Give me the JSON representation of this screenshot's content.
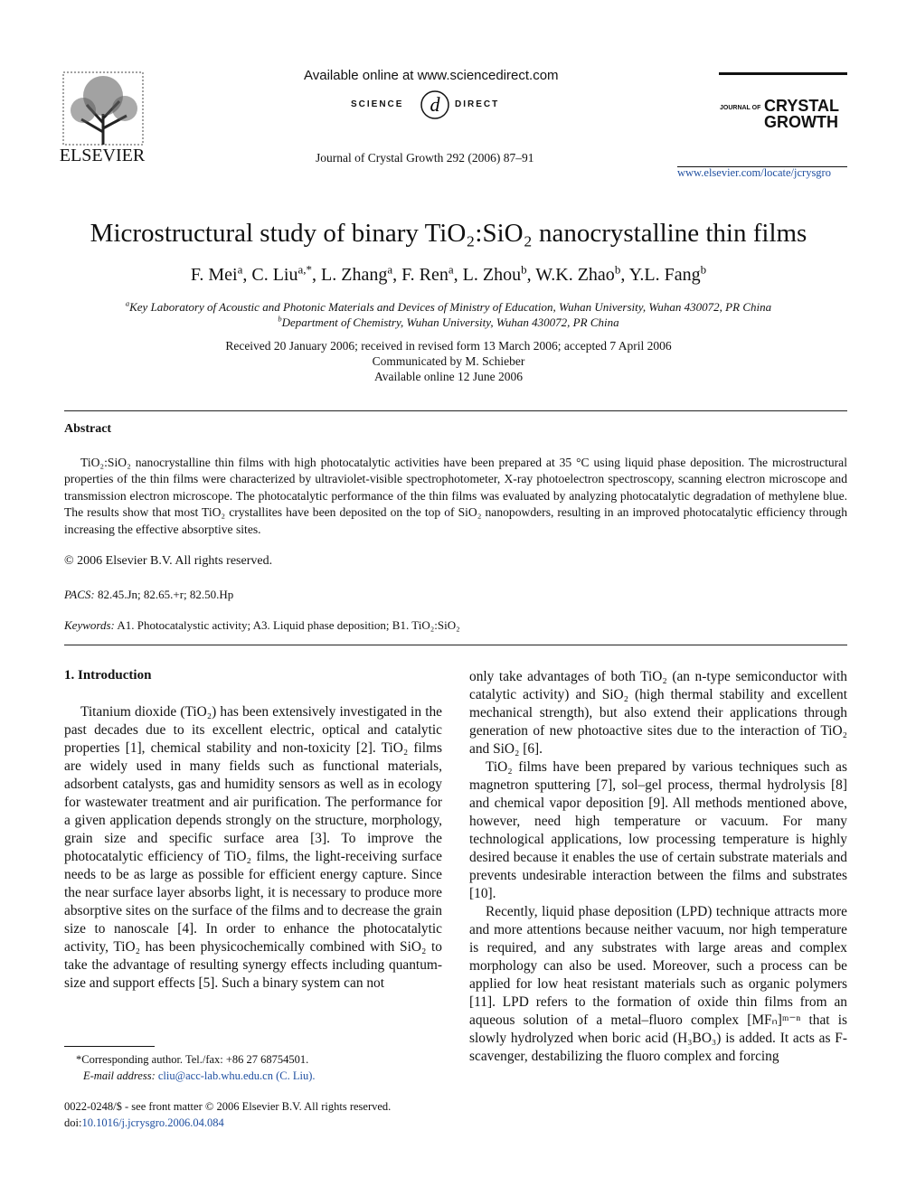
{
  "header": {
    "available_online": "Available online at www.sciencedirect.com",
    "sd_left": "SCIENCE",
    "sd_right": "DIRECT",
    "journal_ref": "Journal of Crystal Growth 292 (2006) 87–91",
    "publisher": "ELSEVIER",
    "journal_small": "JOURNAL OF",
    "journal_big_1": "CRYSTAL",
    "journal_big_2": "GROWTH",
    "url": "www.elsevier.com/locate/jcrysgro"
  },
  "title": "Microstructural study of binary TiO₂:SiO₂ nanocrystalline thin films",
  "authors": [
    {
      "text": "F. Mei",
      "sup": "a"
    },
    {
      "text": ", C. Liu",
      "sup": "a,*"
    },
    {
      "text": ", L. Zhang",
      "sup": "a"
    },
    {
      "text": ", F. Ren",
      "sup": "a"
    },
    {
      "text": ", L. Zhou",
      "sup": "b"
    },
    {
      "text": ", W.K. Zhao",
      "sup": "b"
    },
    {
      "text": ", Y.L. Fang",
      "sup": "b"
    }
  ],
  "affiliations": [
    {
      "sup": "a",
      "text": "Key Laboratory of Acoustic and Photonic Materials and Devices of Ministry of Education, Wuhan University, Wuhan 430072, PR China"
    },
    {
      "sup": "b",
      "text": "Department of Chemistry, Wuhan University, Wuhan 430072, PR China"
    }
  ],
  "dates": [
    "Received 20 January 2006; received in revised form 13 March 2006; accepted 7 April 2006",
    "Communicated by M. Schieber",
    "Available online 12 June 2006"
  ],
  "abstract": {
    "heading": "Abstract",
    "text": "TiO₂:SiO₂ nanocrystalline thin films with high photocatalytic activities have been prepared at 35 °C using liquid phase deposition. The microstructural properties of the thin films were characterized by ultraviolet-visible spectrophotometer, X-ray photoelectron spectroscopy, scanning electron microscope and transmission electron microscope. The photocatalytic performance of the thin films was evaluated by analyzing photocatalytic degradation of methylene blue. The results show that most TiO₂ crystallites have been deposited on the top of SiO₂ nanopowders, resulting in an improved photocatalytic efficiency through increasing the effective absorptive sites.",
    "copyright": "© 2006 Elsevier B.V. All rights reserved.",
    "pacs_label": "PACS:",
    "pacs": "82.45.Jn; 82.65.+r; 82.50.Hp",
    "keywords_label": "Keywords:",
    "keywords": "A1. Photocatalystic activity; A3. Liquid phase deposition; B1. TiO₂:SiO₂"
  },
  "section_heading": "1. Introduction",
  "left_paragraph": "Titanium dioxide (TiO₂) has been extensively investigated in the past decades due to its excellent electric, optical and catalytic properties [1], chemical stability and non-toxicity [2]. TiO₂ films are widely used in many fields such as functional materials, adsorbent catalysts, gas and humidity sensors as well as in ecology for wastewater treatment and air purification. The performance for a given application depends strongly on the structure, morphology, grain size and specific surface area [3]. To improve the photocatalytic efficiency of TiO₂ films, the light-receiving surface needs to be as large as possible for efficient energy capture. Since the near surface layer absorbs light, it is necessary to produce more absorptive sites on the surface of the films and to decrease the grain size to nanoscale [4]. In order to enhance the photocatalytic activity, TiO₂ has been physicochemically combined with SiO₂ to take the advantage of resulting synergy effects including quantum-size and support effects [5]. Such a binary system can not",
  "right_paragraphs": [
    "only take advantages of both TiO₂ (an n-type semiconductor with catalytic activity) and SiO₂ (high thermal stability and excellent mechanical strength), but also extend their applications through generation of new photoactive sites due to the interaction of TiO₂ and SiO₂ [6].",
    "TiO₂ films have been prepared by various techniques such as magnetron sputtering [7], sol–gel process, thermal hydrolysis [8] and chemical vapor deposition [9]. All methods mentioned above, however, need high temperature or vacuum. For many technological applications, low processing temperature is highly desired because it enables the use of certain substrate materials and prevents undesirable interaction between the films and substrates [10].",
    "Recently, liquid phase deposition (LPD) technique attracts more and more attentions because neither vacuum, nor high temperature is required, and any substrates with large areas and complex morphology can also be used. Moreover, such a process can be applied for low heat resistant materials such as organic polymers [11]. LPD refers to the formation of oxide thin films from an aqueous solution of a metal–fluoro complex [MFₙ]ᵐ⁻ⁿ that is slowly hydrolyzed when boric acid (H₃BO₃) is added. It acts as F-scavenger, destabilizing the fluoro complex and forcing"
  ],
  "footnote": {
    "corresponding": "*Corresponding author. Tel./fax: +86 27 68754501.",
    "email_label": "E-mail address:",
    "email": "cliu@acc-lab.whu.edu.cn (C. Liu)."
  },
  "footer": {
    "issn": "0022-0248/$ - see front matter © 2006 Elsevier B.V. All rights reserved.",
    "doi_label": "doi:",
    "doi": "10.1016/j.jcrysgro.2006.04.084"
  }
}
